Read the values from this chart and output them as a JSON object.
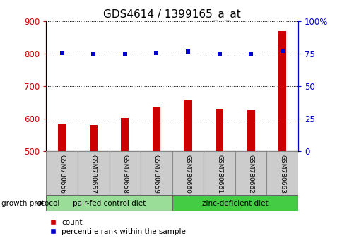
{
  "title": "GDS4614 / 1399165_a_at",
  "samples": [
    "GSM780656",
    "GSM780657",
    "GSM780658",
    "GSM780659",
    "GSM780660",
    "GSM780661",
    "GSM780662",
    "GSM780663"
  ],
  "counts": [
    585,
    580,
    602,
    638,
    658,
    630,
    627,
    870
  ],
  "percentiles": [
    75.5,
    74.5,
    74.8,
    75.5,
    76.5,
    75.3,
    75.3,
    77.5
  ],
  "ylim_left": [
    500,
    900
  ],
  "ylim_right": [
    0,
    100
  ],
  "yticks_left": [
    500,
    600,
    700,
    800,
    900
  ],
  "yticks_right": [
    0,
    25,
    50,
    75,
    100
  ],
  "bar_color": "#cc0000",
  "dot_color": "#0000cc",
  "group1_label": "pair-fed control diet",
  "group2_label": "zinc-deficient diet",
  "group1_indices": [
    0,
    1,
    2,
    3
  ],
  "group2_indices": [
    4,
    5,
    6,
    7
  ],
  "group1_color": "#99dd99",
  "group2_color": "#44cc44",
  "growth_protocol_label": "growth protocol",
  "legend_count_label": "count",
  "legend_percentile_label": "percentile rank within the sample",
  "left_tick_color": "#cc0000",
  "right_tick_color": "#0000cc",
  "title_fontsize": 11,
  "tick_fontsize": 8.5,
  "bar_width": 0.25
}
